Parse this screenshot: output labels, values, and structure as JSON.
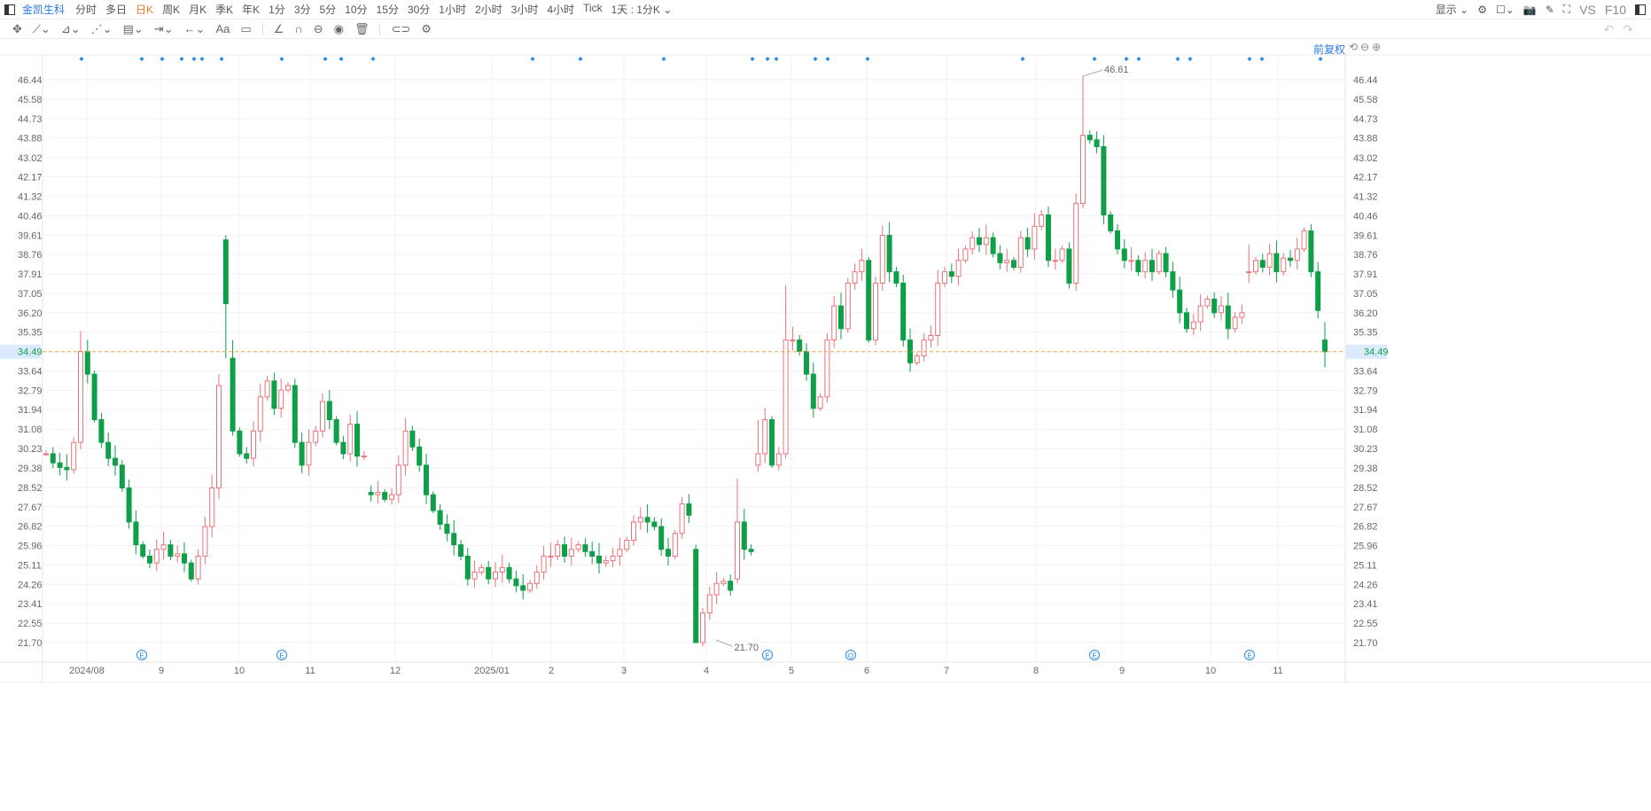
{
  "toolbar": {
    "stock_name": "金凯生科",
    "periods": [
      "分时",
      "多日",
      "日K",
      "周K",
      "月K",
      "季K",
      "年K",
      "1分",
      "3分",
      "5分",
      "10分",
      "15分",
      "30分",
      "1小时",
      "2小时",
      "3小时",
      "4小时",
      "Tick",
      "1天 : 1分K ⌄"
    ],
    "active_period": "日K",
    "right": {
      "display": "显示 ⌄",
      "vs": "VS",
      "f10": "F10"
    }
  },
  "drawing_tools": [
    "✥",
    "⟋⌄",
    "⊿⌄",
    "⋰⌄",
    "▤⌄",
    "⇥⌄",
    "←⌄",
    "Aa",
    "▭",
    "∠",
    "∩",
    "⊖",
    "◉",
    "🗑",
    "⊂⊃",
    "⚙"
  ],
  "undo_redo": [
    "↶",
    "↷"
  ],
  "adjust_label": "前复权",
  "zoom_controls": "⟲⊖⊕",
  "colors": {
    "up": "#e8737a",
    "down": "#0e9f48",
    "current_line": "#f0a04b",
    "accent": "#2a7ae2",
    "marker": "#2a8ae8"
  },
  "chart_data": {
    "type": "candlestick",
    "y_ticks": [
      "46.44",
      "45.58",
      "44.73",
      "43.88",
      "43.02",
      "42.17",
      "41.32",
      "40.46",
      "39.61",
      "38.76",
      "37.91",
      "37.05",
      "36.20",
      "35.35",
      "33.64",
      "32.79",
      "31.94",
      "31.08",
      "30.23",
      "29.38",
      "28.52",
      "27.67",
      "26.82",
      "25.96",
      "25.11",
      "24.26",
      "23.41",
      "22.55",
      "21.70"
    ],
    "ylim": [
      21.7,
      46.44
    ],
    "x_ticks": [
      "2024/08",
      "9",
      "10",
      "11",
      "12",
      "2025/01",
      "2",
      "3",
      "4",
      "5",
      "6",
      "7",
      "8",
      "9",
      "10",
      "11"
    ],
    "current_price": "34.49",
    "max_label": "46.61",
    "min_label": "21.70",
    "event_markers": [
      "E",
      "E",
      "E",
      "Q",
      "E",
      "E"
    ],
    "candles": [
      30.0,
      29.6,
      29.4,
      29.3,
      30.5,
      [
        30.5,
        35.4,
        30.2,
        34.5
      ],
      33.5,
      31.5,
      30.5,
      29.8,
      29.5,
      28.5,
      27.0,
      26.0,
      25.5,
      25.2,
      25.8,
      26.0,
      25.5,
      25.6,
      25.2,
      24.5,
      25.5,
      26.8,
      28.5,
      [
        28.5,
        33.5,
        28.0,
        33.0
      ],
      [
        39.4,
        39.6,
        34.2,
        36.6
      ],
      [
        34.2,
        35.0,
        30.8,
        31.0
      ],
      30.0,
      29.8,
      31.0,
      32.5,
      33.2,
      32.0,
      32.8,
      33.0,
      30.5,
      29.5,
      30.5,
      31.0,
      32.3,
      31.5,
      30.5,
      30.0,
      31.3,
      29.9,
      29.9,
      [
        28.3,
        28.6,
        27.9,
        28.2
      ],
      28.3,
      28.0,
      28.2,
      29.5,
      31.0,
      30.3,
      29.5,
      28.2,
      27.5,
      26.9,
      26.5,
      26.0,
      25.5,
      24.5,
      24.8,
      25.0,
      24.5,
      24.8,
      25.0,
      24.5,
      24.2,
      24.0,
      24.3,
      24.8,
      25.5,
      25.5,
      26.0,
      25.5,
      25.8,
      26.0,
      25.7,
      25.5,
      25.2,
      25.3,
      25.5,
      25.8,
      26.2,
      27.0,
      27.2,
      27.0,
      26.8,
      25.8,
      25.5,
      26.5,
      27.8,
      27.3,
      [
        25.8,
        26.0,
        21.7,
        21.7
      ],
      23.0,
      23.8,
      24.3,
      24.4,
      24.0,
      [
        24.5,
        28.9,
        24.3,
        27.0
      ],
      25.8,
      25.7,
      [
        29.5,
        31.5,
        29.2,
        30.0
      ],
      31.5,
      29.5,
      30.0,
      [
        30.0,
        37.4,
        29.8,
        35.0
      ],
      35.0,
      34.5,
      33.5,
      32.0,
      32.5,
      35.0,
      36.5,
      35.5,
      37.5,
      38.0,
      38.5,
      35.0,
      37.5,
      39.6,
      38.0,
      37.5,
      35.0,
      34.0,
      34.3,
      35.0,
      35.2,
      37.5,
      38.0,
      37.8,
      38.5,
      39.0,
      39.5,
      39.2,
      39.5,
      38.8,
      38.4,
      38.5,
      38.2,
      39.5,
      39.0,
      40.0,
      40.5,
      38.5,
      38.5,
      39.0,
      37.5,
      41.0,
      [
        41.0,
        46.61,
        40.8,
        44.0
      ],
      43.8,
      43.5,
      40.5,
      39.8,
      39.0,
      38.5,
      38.5,
      38.0,
      38.5,
      38.0,
      38.8,
      38.0,
      37.2,
      36.2,
      35.5,
      35.8,
      36.5,
      36.8,
      36.2,
      36.5,
      35.5,
      36.0,
      36.2,
      [
        38.0,
        39.2,
        37.5,
        38.0
      ],
      38.5,
      38.2,
      38.8,
      38.0,
      38.6,
      38.5,
      39.0,
      39.8,
      38.0,
      36.3,
      [
        35.0,
        35.8,
        33.8,
        34.49
      ]
    ]
  }
}
